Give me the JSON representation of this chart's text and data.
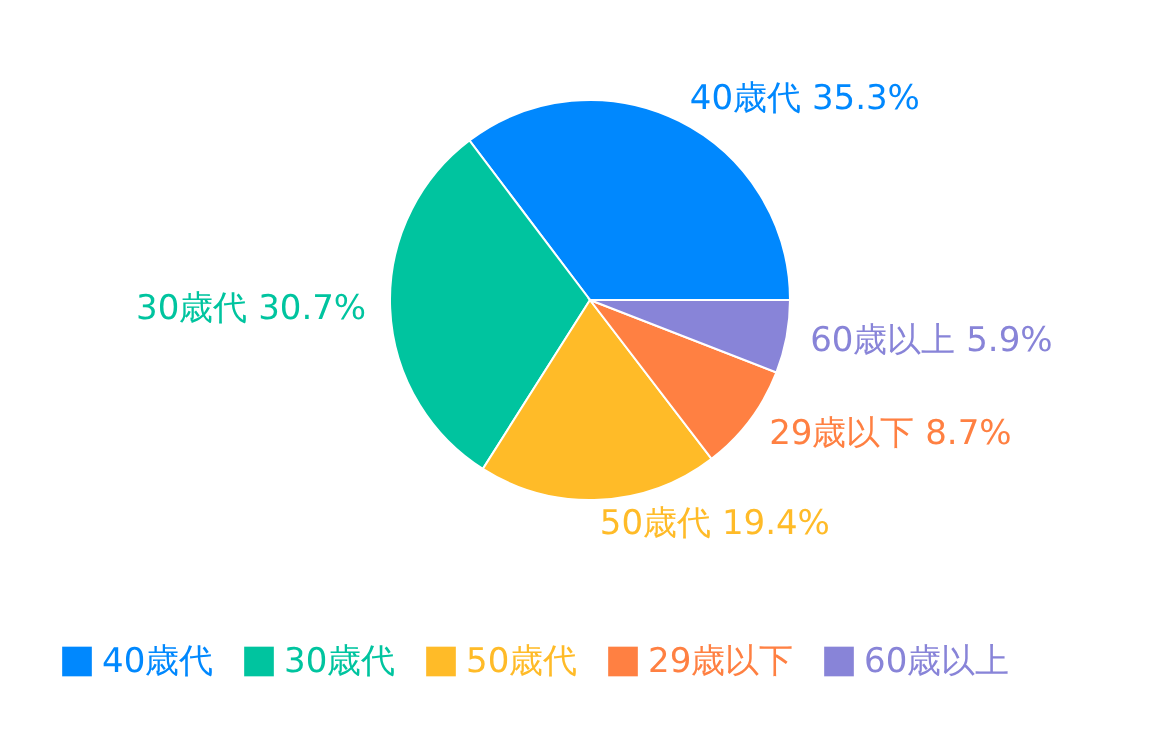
{
  "chart_data": {
    "type": "pie",
    "categories": [
      "40歳代",
      "30歳代",
      "50歳代",
      "29歳以下",
      "60歳以上"
    ],
    "values": [
      35.3,
      30.7,
      19.4,
      8.7,
      5.9
    ],
    "value_labels": [
      "35.3%",
      "30.7%",
      "19.4%",
      "8.7%",
      "5.9%"
    ],
    "colors": [
      "#0088fe",
      "#00c49f",
      "#ffbb28",
      "#ff8042",
      "#8884d8"
    ],
    "legend": "bottom"
  }
}
